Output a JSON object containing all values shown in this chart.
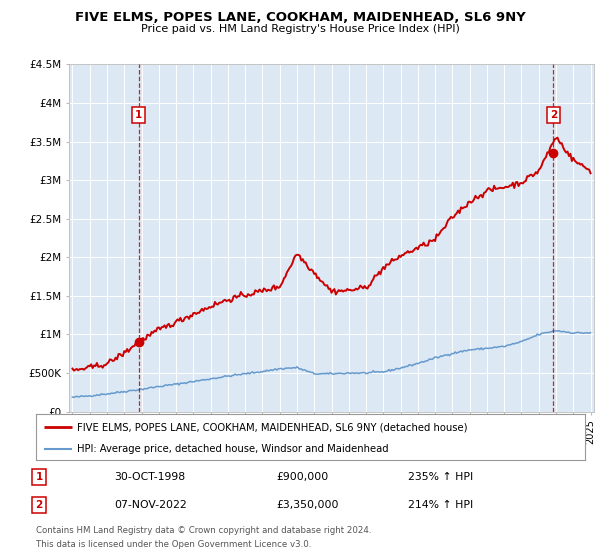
{
  "title": "FIVE ELMS, POPES LANE, COOKHAM, MAIDENHEAD, SL6 9NY",
  "subtitle": "Price paid vs. HM Land Registry's House Price Index (HPI)",
  "bg_color": "#dce9f5",
  "red_color": "#cc0000",
  "blue_color": "#6699cc",
  "marker1_year": 1998.83,
  "marker1_value": 900000,
  "marker2_year": 2022.85,
  "marker2_value": 3350000,
  "ylim": [
    0,
    4500000
  ],
  "xlim_start": 1995,
  "xlim_end": 2025,
  "yticks": [
    0,
    500000,
    1000000,
    1500000,
    2000000,
    2500000,
    3000000,
    3500000,
    4000000,
    4500000
  ],
  "ytick_labels": [
    "£0",
    "£500K",
    "£1M",
    "£1.5M",
    "£2M",
    "£2.5M",
    "£3M",
    "£3.5M",
    "£4M",
    "£4.5M"
  ],
  "legend_line1": "FIVE ELMS, POPES LANE, COOKHAM, MAIDENHEAD, SL6 9NY (detached house)",
  "legend_line2": "HPI: Average price, detached house, Windsor and Maidenhead",
  "note1_num": "1",
  "note1_date": "30-OCT-1998",
  "note1_price": "£900,000",
  "note1_hpi": "235% ↑ HPI",
  "note2_num": "2",
  "note2_date": "07-NOV-2022",
  "note2_price": "£3,350,000",
  "note2_hpi": "214% ↑ HPI",
  "footer1": "Contains HM Land Registry data © Crown copyright and database right 2024.",
  "footer2": "This data is licensed under the Open Government Licence v3.0."
}
